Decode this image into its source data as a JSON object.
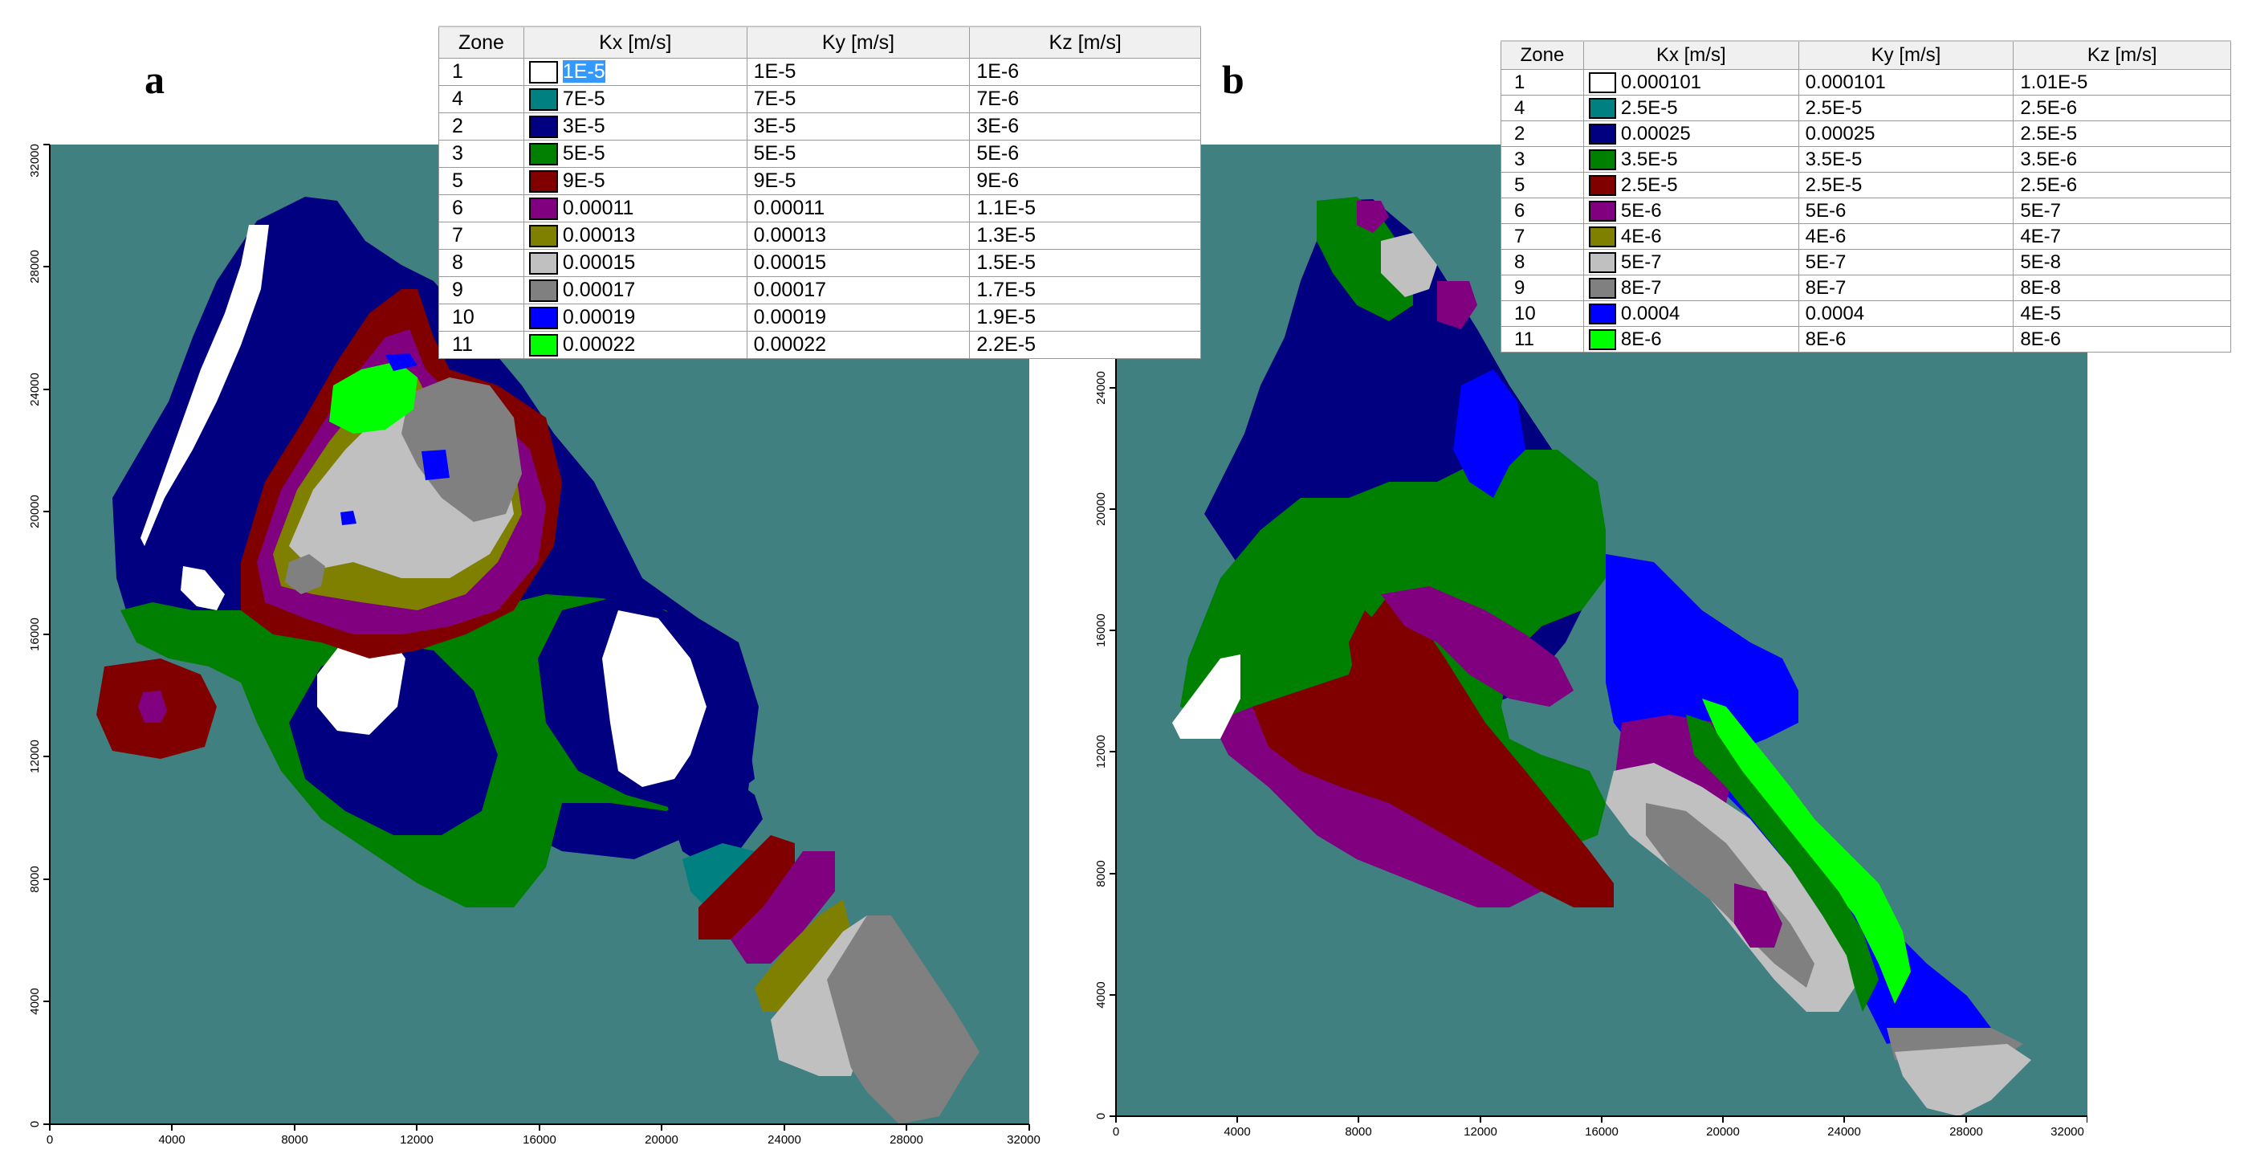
{
  "colors": {
    "background": "#408080",
    "zone_1": "#ffffff",
    "zone_2": "#000080",
    "zone_3": "#008000",
    "zone_4": "#008080",
    "zone_5": "#800000",
    "zone_6": "#800080",
    "zone_7": "#808000",
    "zone_8": "#c0c0c0",
    "zone_9": "#808080",
    "zone_10": "#0000ff",
    "zone_11": "#00ff00"
  },
  "panel_a": {
    "label": "a",
    "table": {
      "headers": [
        "Zone",
        "Kx [m/s]",
        "Ky [m/s]",
        "Kz [m/s]"
      ],
      "rows": [
        {
          "zone": "1",
          "color": "#ffffff",
          "kx": "1E-5",
          "ky": "1E-5",
          "kz": "1E-6"
        },
        {
          "zone": "4",
          "color": "#008080",
          "kx": "7E-5",
          "ky": "7E-5",
          "kz": "7E-6"
        },
        {
          "zone": "2",
          "color": "#000080",
          "kx": "3E-5",
          "ky": "3E-5",
          "kz": "3E-6"
        },
        {
          "zone": "3",
          "color": "#008000",
          "kx": "5E-5",
          "ky": "5E-5",
          "kz": "5E-6"
        },
        {
          "zone": "5",
          "color": "#800000",
          "kx": "9E-5",
          "ky": "9E-5",
          "kz": "9E-6"
        },
        {
          "zone": "6",
          "color": "#800080",
          "kx": "0.00011",
          "ky": "0.00011",
          "kz": "1.1E-5"
        },
        {
          "zone": "7",
          "color": "#808000",
          "kx": "0.00013",
          "ky": "0.00013",
          "kz": "1.3E-5"
        },
        {
          "zone": "8",
          "color": "#c0c0c0",
          "kx": "0.00015",
          "ky": "0.00015",
          "kz": "1.5E-5"
        },
        {
          "zone": "9",
          "color": "#808080",
          "kx": "0.00017",
          "ky": "0.00017",
          "kz": "1.7E-5"
        },
        {
          "zone": "10",
          "color": "#0000ff",
          "kx": "0.00019",
          "ky": "0.00019",
          "kz": "1.9E-5"
        },
        {
          "zone": "11",
          "color": "#00ff00",
          "kx": "0.00022",
          "ky": "0.00022",
          "kz": "2.2E-5"
        }
      ]
    },
    "x_ticks": [
      "0",
      "4000",
      "8000",
      "12000",
      "16000",
      "20000",
      "24000",
      "28000",
      "32000"
    ],
    "y_ticks": [
      "0",
      "4000",
      "8000",
      "12000",
      "16000",
      "20000",
      "24000",
      "28000",
      "32000"
    ]
  },
  "panel_b": {
    "label": "b",
    "table": {
      "headers": [
        "Zone",
        "Kx [m/s]",
        "Ky [m/s]",
        "Kz [m/s]"
      ],
      "rows": [
        {
          "zone": "1",
          "color": "#ffffff",
          "kx": "0.000101",
          "ky": "0.000101",
          "kz": "1.01E-5"
        },
        {
          "zone": "4",
          "color": "#008080",
          "kx": "2.5E-5",
          "ky": "2.5E-5",
          "kz": "2.5E-6"
        },
        {
          "zone": "2",
          "color": "#000080",
          "kx": "0.00025",
          "ky": "0.00025",
          "kz": "2.5E-5"
        },
        {
          "zone": "3",
          "color": "#008000",
          "kx": "3.5E-5",
          "ky": "3.5E-5",
          "kz": "3.5E-6"
        },
        {
          "zone": "5",
          "color": "#800000",
          "kx": "2.5E-5",
          "ky": "2.5E-5",
          "kz": "2.5E-6"
        },
        {
          "zone": "6",
          "color": "#800080",
          "kx": "5E-6",
          "ky": "5E-6",
          "kz": "5E-7"
        },
        {
          "zone": "7",
          "color": "#808000",
          "kx": "4E-6",
          "ky": "4E-6",
          "kz": "4E-7"
        },
        {
          "zone": "8",
          "color": "#c0c0c0",
          "kx": "5E-7",
          "ky": "5E-7",
          "kz": "5E-8"
        },
        {
          "zone": "9",
          "color": "#808080",
          "kx": "8E-7",
          "ky": "8E-7",
          "kz": "8E-8"
        },
        {
          "zone": "10",
          "color": "#0000ff",
          "kx": "0.0004",
          "ky": "0.0004",
          "kz": "4E-5"
        },
        {
          "zone": "11",
          "color": "#00ff00",
          "kx": "8E-6",
          "ky": "8E-6",
          "kz": "8E-6"
        }
      ]
    },
    "x_ticks": [
      "0",
      "4000",
      "8000",
      "12000",
      "16000",
      "20000",
      "24000",
      "28000",
      "32000"
    ],
    "y_ticks": [
      "0",
      "4000",
      "8000",
      "12000",
      "16000",
      "20000",
      "24000"
    ]
  }
}
